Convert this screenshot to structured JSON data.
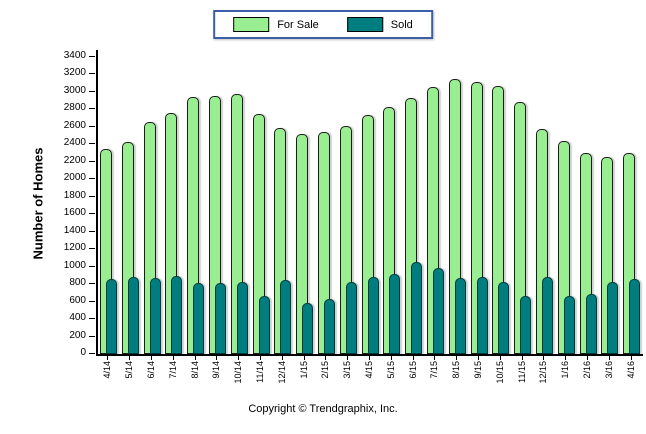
{
  "legend": {
    "border_color": "#3a5fa8",
    "items": [
      {
        "label": "For Sale",
        "color": "#98ee90",
        "border": "#1c1c1c"
      },
      {
        "label": "Sold",
        "color": "#007d7e",
        "border": "#02393b"
      }
    ]
  },
  "y_axis": {
    "title": "Number of Homes"
  },
  "footer": {
    "copyright": "Copyright © Trendgraphix, Inc."
  },
  "chart_data": {
    "type": "bar",
    "title": "",
    "xlabel": "",
    "ylabel": "Number of Homes",
    "ylim": [
      0,
      3400
    ],
    "ytick_step": 200,
    "grid": false,
    "legend_position": "top-center",
    "bar_style": "rounded-top overlapping pairs",
    "categories": [
      "4/14",
      "5/14",
      "6/14",
      "7/14",
      "8/14",
      "9/14",
      "10/14",
      "11/14",
      "12/14",
      "1/15",
      "2/15",
      "3/15",
      "4/15",
      "5/15",
      "6/15",
      "7/15",
      "8/15",
      "9/15",
      "10/15",
      "11/15",
      "12/15",
      "1/16",
      "2/16",
      "3/16",
      "4/16"
    ],
    "series": [
      {
        "name": "For Sale",
        "color": "#98ee90",
        "values": [
          2320,
          2400,
          2630,
          2740,
          2920,
          2930,
          2950,
          2720,
          2560,
          2490,
          2520,
          2590,
          2710,
          2800,
          2910,
          3030,
          3120,
          3090,
          3050,
          2860,
          2550,
          2420,
          2280,
          2230,
          2280
        ]
      },
      {
        "name": "Sold",
        "color": "#007d7e",
        "values": [
          840,
          855,
          845,
          865,
          795,
          785,
          805,
          640,
          825,
          565,
          610,
          800,
          855,
          890,
          1030,
          965,
          845,
          860,
          800,
          640,
          860,
          645,
          660,
          805,
          840
        ]
      }
    ]
  }
}
